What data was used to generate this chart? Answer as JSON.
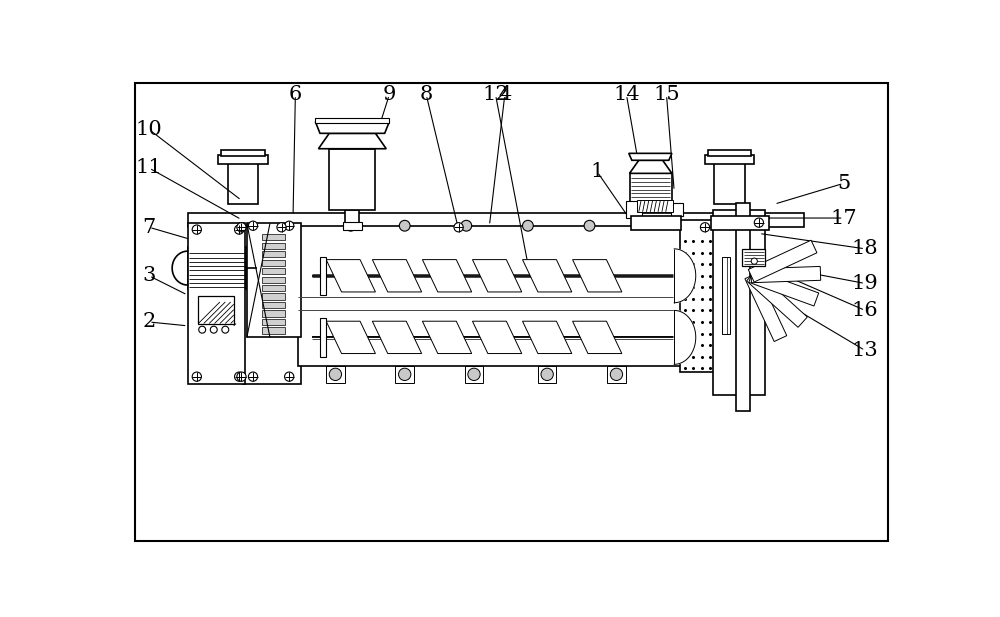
{
  "bg_color": "#ffffff",
  "line_color": "#000000",
  "fig_width": 10.0,
  "fig_height": 6.17,
  "dpi": 100,
  "annotations": [
    [
      "10",
      28,
      545,
      148,
      453
    ],
    [
      "11",
      28,
      495,
      148,
      428
    ],
    [
      "7",
      28,
      418,
      165,
      378
    ],
    [
      "3",
      28,
      355,
      78,
      330
    ],
    [
      "2",
      28,
      295,
      78,
      290
    ],
    [
      "9",
      340,
      590,
      292,
      440
    ],
    [
      "4",
      490,
      590,
      470,
      420
    ],
    [
      "14",
      648,
      590,
      670,
      465
    ],
    [
      "15",
      700,
      590,
      710,
      465
    ],
    [
      "13",
      958,
      258,
      820,
      340
    ],
    [
      "16",
      958,
      310,
      820,
      370
    ],
    [
      "18",
      958,
      390,
      820,
      410
    ],
    [
      "19",
      958,
      345,
      800,
      375
    ],
    [
      "5",
      930,
      475,
      840,
      448
    ],
    [
      "6",
      218,
      590,
      215,
      433
    ],
    [
      "8",
      388,
      590,
      430,
      415
    ],
    [
      "12",
      478,
      590,
      520,
      370
    ],
    [
      "1",
      610,
      490,
      650,
      432
    ],
    [
      "17",
      930,
      430,
      800,
      430
    ]
  ]
}
